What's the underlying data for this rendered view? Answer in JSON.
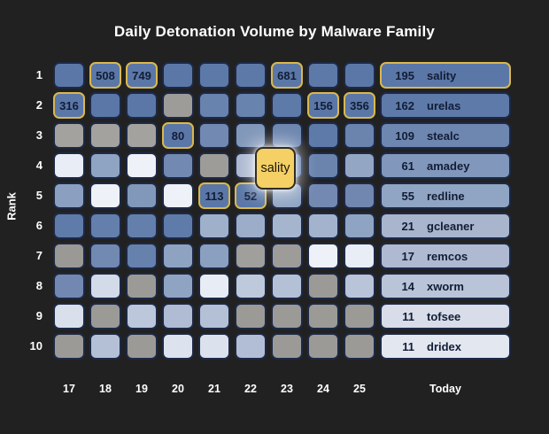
{
  "title": "Daily Detonation Volume by Malware Family",
  "ylabel": "Rank",
  "colors": {
    "background": "#212121",
    "cell_border": "#1d2946",
    "highlight_border": "#d9b84f",
    "tooltip_bg": "#f4d065",
    "tooltip_text": "#1c160a",
    "axis_text": "#ffffff",
    "cell_text": "#121d35"
  },
  "tooltip": {
    "text": "sality"
  },
  "chart_data": {
    "type": "heatmap",
    "title": "Daily Detonation Volume by Malware Family",
    "xlabel": "",
    "ylabel": "Rank",
    "x_labels": [
      "17",
      "18",
      "19",
      "20",
      "21",
      "22",
      "23",
      "24",
      "25",
      "Today"
    ],
    "rank_labels": [
      "1",
      "2",
      "3",
      "4",
      "5",
      "6",
      "7",
      "8",
      "9",
      "10"
    ],
    "legend_position": "none",
    "grid": "off",
    "highlight_series": {
      "family": "sality",
      "points": [
        {
          "day": "17",
          "rank": 2,
          "count": 316
        },
        {
          "day": "18",
          "rank": 1,
          "count": 508
        },
        {
          "day": "19",
          "rank": 1,
          "count": 749
        },
        {
          "day": "20",
          "rank": 3,
          "count": 80
        },
        {
          "day": "21",
          "rank": 5,
          "count": 113
        },
        {
          "day": "22",
          "rank": 5,
          "count": 52
        },
        {
          "day": "23",
          "rank": 1,
          "count": 681
        },
        {
          "day": "24",
          "rank": 2,
          "count": 156
        },
        {
          "day": "25",
          "rank": 2,
          "count": 356
        },
        {
          "day": "Today",
          "rank": 1,
          "count": 195
        }
      ]
    },
    "today_leaderboard": [
      {
        "rank": 1,
        "family": "sality",
        "count": 195
      },
      {
        "rank": 2,
        "family": "urelas",
        "count": 162
      },
      {
        "rank": 3,
        "family": "stealc",
        "count": 109
      },
      {
        "rank": 4,
        "family": "amadey",
        "count": 61
      },
      {
        "rank": 5,
        "family": "redline",
        "count": 55
      },
      {
        "rank": 6,
        "family": "gcleaner",
        "count": 21
      },
      {
        "rank": 7,
        "family": "remcos",
        "count": 17
      },
      {
        "rank": 8,
        "family": "xworm",
        "count": 14
      },
      {
        "rank": 9,
        "family": "tofsee",
        "count": 11
      },
      {
        "rank": 10,
        "family": "dridex",
        "count": 11
      }
    ],
    "rows": [
      {
        "rank": "1",
        "cells": [
          {
            "c": "#5a77a7"
          },
          {
            "c": "#5a77a7",
            "v": "508",
            "hl": true
          },
          {
            "c": "#5a77a7",
            "v": "749",
            "hl": true
          },
          {
            "c": "#5a77a7"
          },
          {
            "c": "#5d79a8"
          },
          {
            "c": "#5d79a8"
          },
          {
            "c": "#5a77a7",
            "v": "681",
            "hl": true
          },
          {
            "c": "#5d79a8"
          },
          {
            "c": "#5a77a7"
          }
        ],
        "today": {
          "v": "195",
          "name": "sality",
          "c": "#5a77a7",
          "hl": true
        }
      },
      {
        "rank": "2",
        "cells": [
          {
            "c": "#5a77a7",
            "v": "316",
            "hl": true
          },
          {
            "c": "#5a77a7"
          },
          {
            "c": "#5a77a7"
          },
          {
            "c": "#9d9c99"
          },
          {
            "c": "#6883ad"
          },
          {
            "c": "#6883ad"
          },
          {
            "c": "#5e7aa9"
          },
          {
            "c": "#5a77a7",
            "v": "156",
            "hl": true
          },
          {
            "c": "#5a77a7",
            "v": "356",
            "hl": true
          }
        ],
        "today": {
          "v": "162",
          "name": "urelas",
          "c": "#5e7aa9"
        }
      },
      {
        "rank": "3",
        "cells": [
          {
            "c": "#a3a29f"
          },
          {
            "c": "#a3a29f"
          },
          {
            "c": "#a3a29f"
          },
          {
            "c": "#5a77a7",
            "v": "80",
            "hl": true
          },
          {
            "c": "#7289b1"
          },
          {
            "c": "#8298ba"
          },
          {
            "c": "#6e87af"
          },
          {
            "c": "#5e7aa9"
          },
          {
            "c": "#6a84ae"
          }
        ],
        "today": {
          "v": "109",
          "name": "stealc",
          "c": "#6e87b0"
        }
      },
      {
        "rank": "4",
        "cells": [
          {
            "c": "#e9edf5"
          },
          {
            "c": "#8fa4c2"
          },
          {
            "c": "#eef1f7"
          },
          {
            "c": "#7289b1"
          },
          {
            "c": "#9d9c99"
          },
          {
            "c": "#aab7cf"
          },
          {
            "c": "#5e7aa9"
          },
          {
            "c": "#6a84ae"
          },
          {
            "c": "#93a7c4"
          }
        ],
        "today": {
          "v": "61",
          "name": "amadey",
          "c": "#8197bc"
        }
      },
      {
        "rank": "5",
        "cells": [
          {
            "c": "#8ba0c0"
          },
          {
            "c": "#eef1f7"
          },
          {
            "c": "#8298ba"
          },
          {
            "c": "#eef1f7"
          },
          {
            "c": "#5a77a7",
            "v": "113",
            "hl": true
          },
          {
            "c": "#5a77a7",
            "v": "52",
            "hl": true
          },
          {
            "c": "#90a5c3"
          },
          {
            "c": "#7389b1"
          },
          {
            "c": "#7187b0"
          }
        ],
        "today": {
          "v": "55",
          "name": "redline",
          "c": "#90a5c3"
        }
      },
      {
        "rank": "6",
        "cells": [
          {
            "c": "#5f7ba9"
          },
          {
            "c": "#647fab"
          },
          {
            "c": "#647fab"
          },
          {
            "c": "#5f7ba9"
          },
          {
            "c": "#9fb0ca"
          },
          {
            "c": "#9badc9"
          },
          {
            "c": "#a5b5ce"
          },
          {
            "c": "#a3b3cd"
          },
          {
            "c": "#8fa4c2"
          }
        ],
        "today": {
          "v": "21",
          "name": "gcleaner",
          "c": "#a9b4cd"
        }
      },
      {
        "rank": "7",
        "cells": [
          {
            "c": "#9a9996"
          },
          {
            "c": "#7289b1"
          },
          {
            "c": "#6681ac"
          },
          {
            "c": "#8ea3c2"
          },
          {
            "c": "#8ba0c0"
          },
          {
            "c": "#a09f9c"
          },
          {
            "c": "#9d9c99"
          },
          {
            "c": "#eef1f7"
          },
          {
            "c": "#e9edf5"
          }
        ],
        "today": {
          "v": "17",
          "name": "remcos",
          "c": "#afbad2"
        }
      },
      {
        "rank": "8",
        "cells": [
          {
            "c": "#7288b0"
          },
          {
            "c": "#d3dae8"
          },
          {
            "c": "#9b9a97"
          },
          {
            "c": "#8fa4c2"
          },
          {
            "c": "#e8ecf4"
          },
          {
            "c": "#bec9db"
          },
          {
            "c": "#b3c0d6"
          },
          {
            "c": "#9b9a97"
          },
          {
            "c": "#b9c4d9"
          }
        ],
        "today": {
          "v": "14",
          "name": "xworm",
          "c": "#bac4d8"
        }
      },
      {
        "rank": "9",
        "cells": [
          {
            "c": "#d9dfeb"
          },
          {
            "c": "#9b9a97"
          },
          {
            "c": "#bcc7db"
          },
          {
            "c": "#b0bcd4"
          },
          {
            "c": "#b4c0d6"
          },
          {
            "c": "#9b9a97"
          },
          {
            "c": "#9b9a97"
          },
          {
            "c": "#9b9a97"
          },
          {
            "c": "#9b9a97"
          }
        ],
        "today": {
          "v": "11",
          "name": "tofsee",
          "c": "#d8dde9"
        }
      },
      {
        "rank": "10",
        "cells": [
          {
            "c": "#9b9a97"
          },
          {
            "c": "#b4c0d6"
          },
          {
            "c": "#9b9a97"
          },
          {
            "c": "#dde3ee"
          },
          {
            "c": "#dce2ed"
          },
          {
            "c": "#b2bed5"
          },
          {
            "c": "#9b9a97"
          },
          {
            "c": "#9b9a97"
          },
          {
            "c": "#9b9a97"
          }
        ],
        "today": {
          "v": "11",
          "name": "dridex",
          "c": "#e3e7f0"
        }
      }
    ]
  }
}
